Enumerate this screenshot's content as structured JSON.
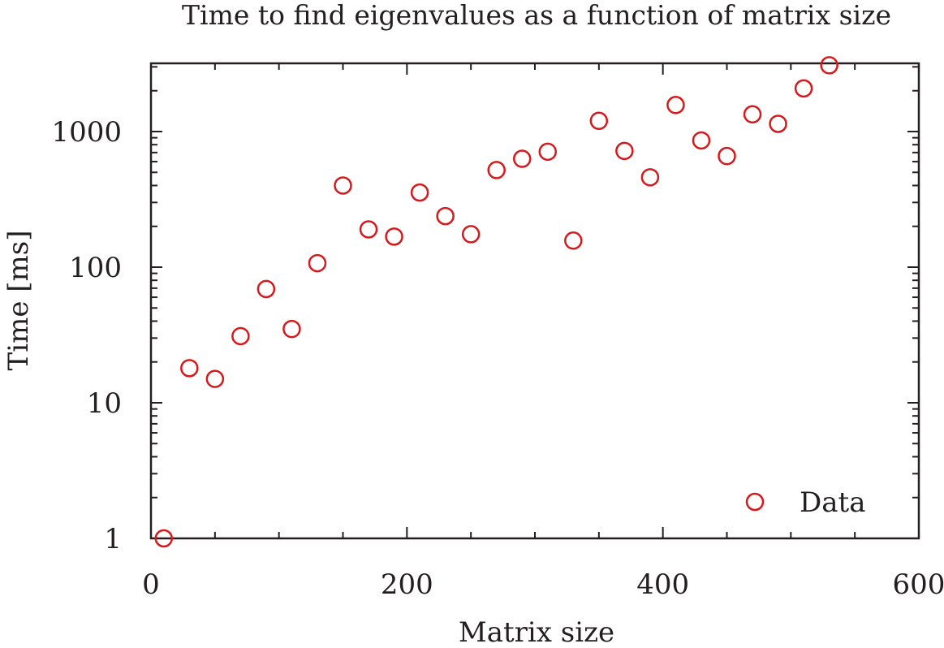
{
  "chart_data": {
    "type": "scatter",
    "title": "Time to find eigenvalues as a function of matrix size",
    "xlabel": "Matrix size",
    "ylabel": "Time [ms]",
    "xlim": [
      0,
      600
    ],
    "ylim": [
      1,
      3000
    ],
    "y_scale": "log",
    "x_ticks": [
      0,
      200,
      400,
      600
    ],
    "x_tick_labels": [
      "0",
      "200",
      "400",
      "600"
    ],
    "y_ticks": [
      1,
      10,
      100,
      1000
    ],
    "y_tick_labels": [
      "1",
      "10",
      "100",
      "1000"
    ],
    "grid": false,
    "legend": {
      "position": "bottom-right",
      "entries": [
        "Data"
      ]
    },
    "marker_color": "#d7191c",
    "series": [
      {
        "name": "Data",
        "marker": "open-circle",
        "x": [
          10,
          30,
          50,
          70,
          90,
          110,
          130,
          150,
          170,
          190,
          210,
          230,
          250,
          270,
          290,
          310,
          330,
          350,
          370,
          390,
          410,
          430,
          450,
          470,
          490,
          510,
          530
        ],
        "y": [
          1,
          18,
          15,
          31,
          69,
          35,
          107,
          400,
          190,
          168,
          355,
          238,
          175,
          520,
          630,
          710,
          157,
          1200,
          720,
          460,
          1570,
          860,
          660,
          1340,
          1140,
          2080,
          3080
        ]
      }
    ]
  }
}
